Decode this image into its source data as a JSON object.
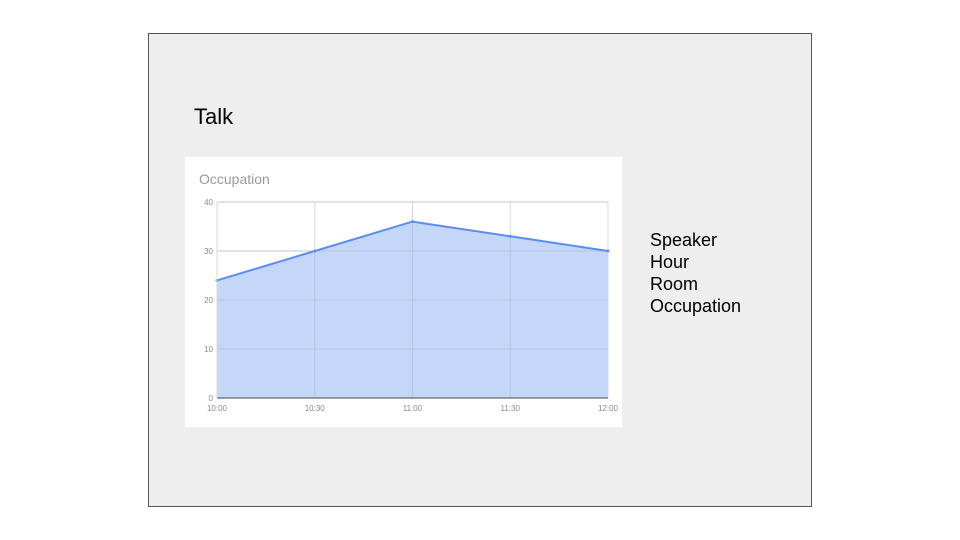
{
  "slide": {
    "title": "Talk",
    "fields": [
      "Speaker",
      "Hour",
      "Room",
      "Occupation"
    ]
  },
  "chart_data": {
    "type": "area",
    "title": "Occupation",
    "xlabel": "",
    "ylabel": "",
    "categories": [
      "10:00",
      "10:30",
      "11:00",
      "11:30",
      "12:00"
    ],
    "values": [
      24,
      30,
      36,
      33,
      30
    ],
    "ylim": [
      0,
      40
    ],
    "yticks": [
      0,
      10,
      20,
      30,
      40
    ],
    "grid": true,
    "colors": {
      "line": "#5b8ef0",
      "fill": "#c4d7f8",
      "grid": "#d9d9d9",
      "axis": "#444444",
      "tick_text": "#888888",
      "title_text": "#999999"
    }
  }
}
